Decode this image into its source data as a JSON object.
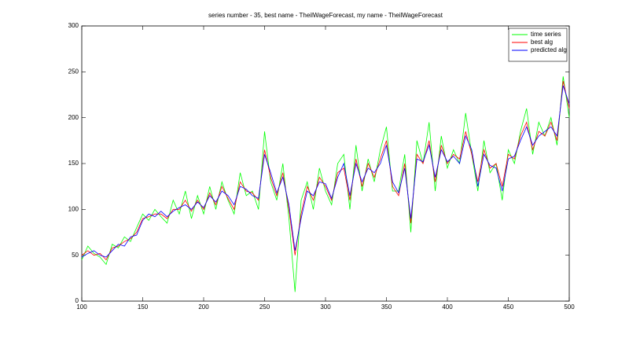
{
  "chart_data": {
    "type": "line",
    "title": "series number - 35, best name - TheilWageForecast, my name - TheilWageForecast",
    "x": [
      100,
      105,
      110,
      115,
      120,
      125,
      130,
      135,
      140,
      145,
      150,
      155,
      160,
      165,
      170,
      175,
      180,
      185,
      190,
      195,
      200,
      205,
      210,
      215,
      220,
      225,
      230,
      235,
      240,
      245,
      250,
      255,
      260,
      265,
      270,
      275,
      280,
      285,
      290,
      295,
      300,
      305,
      310,
      315,
      320,
      325,
      330,
      335,
      340,
      345,
      350,
      355,
      360,
      365,
      370,
      375,
      380,
      385,
      390,
      395,
      400,
      405,
      410,
      415,
      420,
      425,
      430,
      435,
      440,
      445,
      450,
      455,
      460,
      465,
      470,
      475,
      480,
      485,
      490,
      495,
      500
    ],
    "series": [
      {
        "name": "time series",
        "color": "#00ff00",
        "values": [
          45,
          60,
          52,
          48,
          40,
          62,
          58,
          70,
          65,
          80,
          95,
          88,
          100,
          92,
          85,
          110,
          95,
          120,
          90,
          115,
          95,
          125,
          100,
          130,
          110,
          95,
          140,
          115,
          120,
          100,
          185,
          130,
          110,
          150,
          90,
          10,
          110,
          130,
          100,
          145,
          120,
          105,
          150,
          160,
          100,
          170,
          120,
          155,
          130,
          165,
          190,
          120,
          120,
          160,
          75,
          175,
          150,
          195,
          120,
          180,
          145,
          165,
          150,
          205,
          160,
          120,
          175,
          140,
          150,
          110,
          165,
          150,
          185,
          210,
          160,
          195,
          180,
          200,
          170,
          245,
          200
        ]
      },
      {
        "name": "best alg",
        "color": "#ff0000",
        "values": [
          50,
          55,
          50,
          52,
          45,
          58,
          60,
          65,
          68,
          75,
          90,
          92,
          95,
          95,
          90,
          100,
          100,
          110,
          98,
          110,
          100,
          118,
          105,
          125,
          112,
          100,
          130,
          120,
          118,
          110,
          165,
          135,
          115,
          140,
          100,
          50,
          95,
          125,
          110,
          135,
          125,
          110,
          140,
          145,
          110,
          155,
          125,
          150,
          135,
          155,
          175,
          125,
          115,
          150,
          85,
          160,
          150,
          175,
          130,
          170,
          150,
          160,
          155,
          185,
          160,
          130,
          165,
          145,
          150,
          125,
          160,
          155,
          180,
          195,
          165,
          185,
          180,
          195,
          175,
          240,
          210
        ]
      },
      {
        "name": "predicted alg",
        "color": "#0000ff",
        "values": [
          48,
          52,
          55,
          50,
          48,
          55,
          62,
          60,
          70,
          72,
          88,
          95,
          92,
          98,
          92,
          98,
          102,
          105,
          100,
          108,
          102,
          115,
          108,
          120,
          115,
          105,
          125,
          122,
          115,
          112,
          160,
          140,
          118,
          135,
          105,
          55,
          90,
          120,
          115,
          130,
          128,
          112,
          135,
          150,
          115,
          150,
          130,
          145,
          140,
          150,
          170,
          130,
          118,
          145,
          90,
          155,
          152,
          170,
          135,
          165,
          152,
          158,
          150,
          180,
          165,
          125,
          160,
          148,
          145,
          120,
          155,
          158,
          175,
          190,
          170,
          180,
          185,
          190,
          180,
          235,
          215
        ]
      }
    ],
    "xlim": [
      100,
      500
    ],
    "ylim": [
      0,
      300
    ],
    "xticks": [
      100,
      150,
      200,
      250,
      300,
      350,
      400,
      450,
      500
    ],
    "yticks": [
      0,
      50,
      100,
      150,
      200,
      250,
      300
    ],
    "legend": "upper right"
  }
}
